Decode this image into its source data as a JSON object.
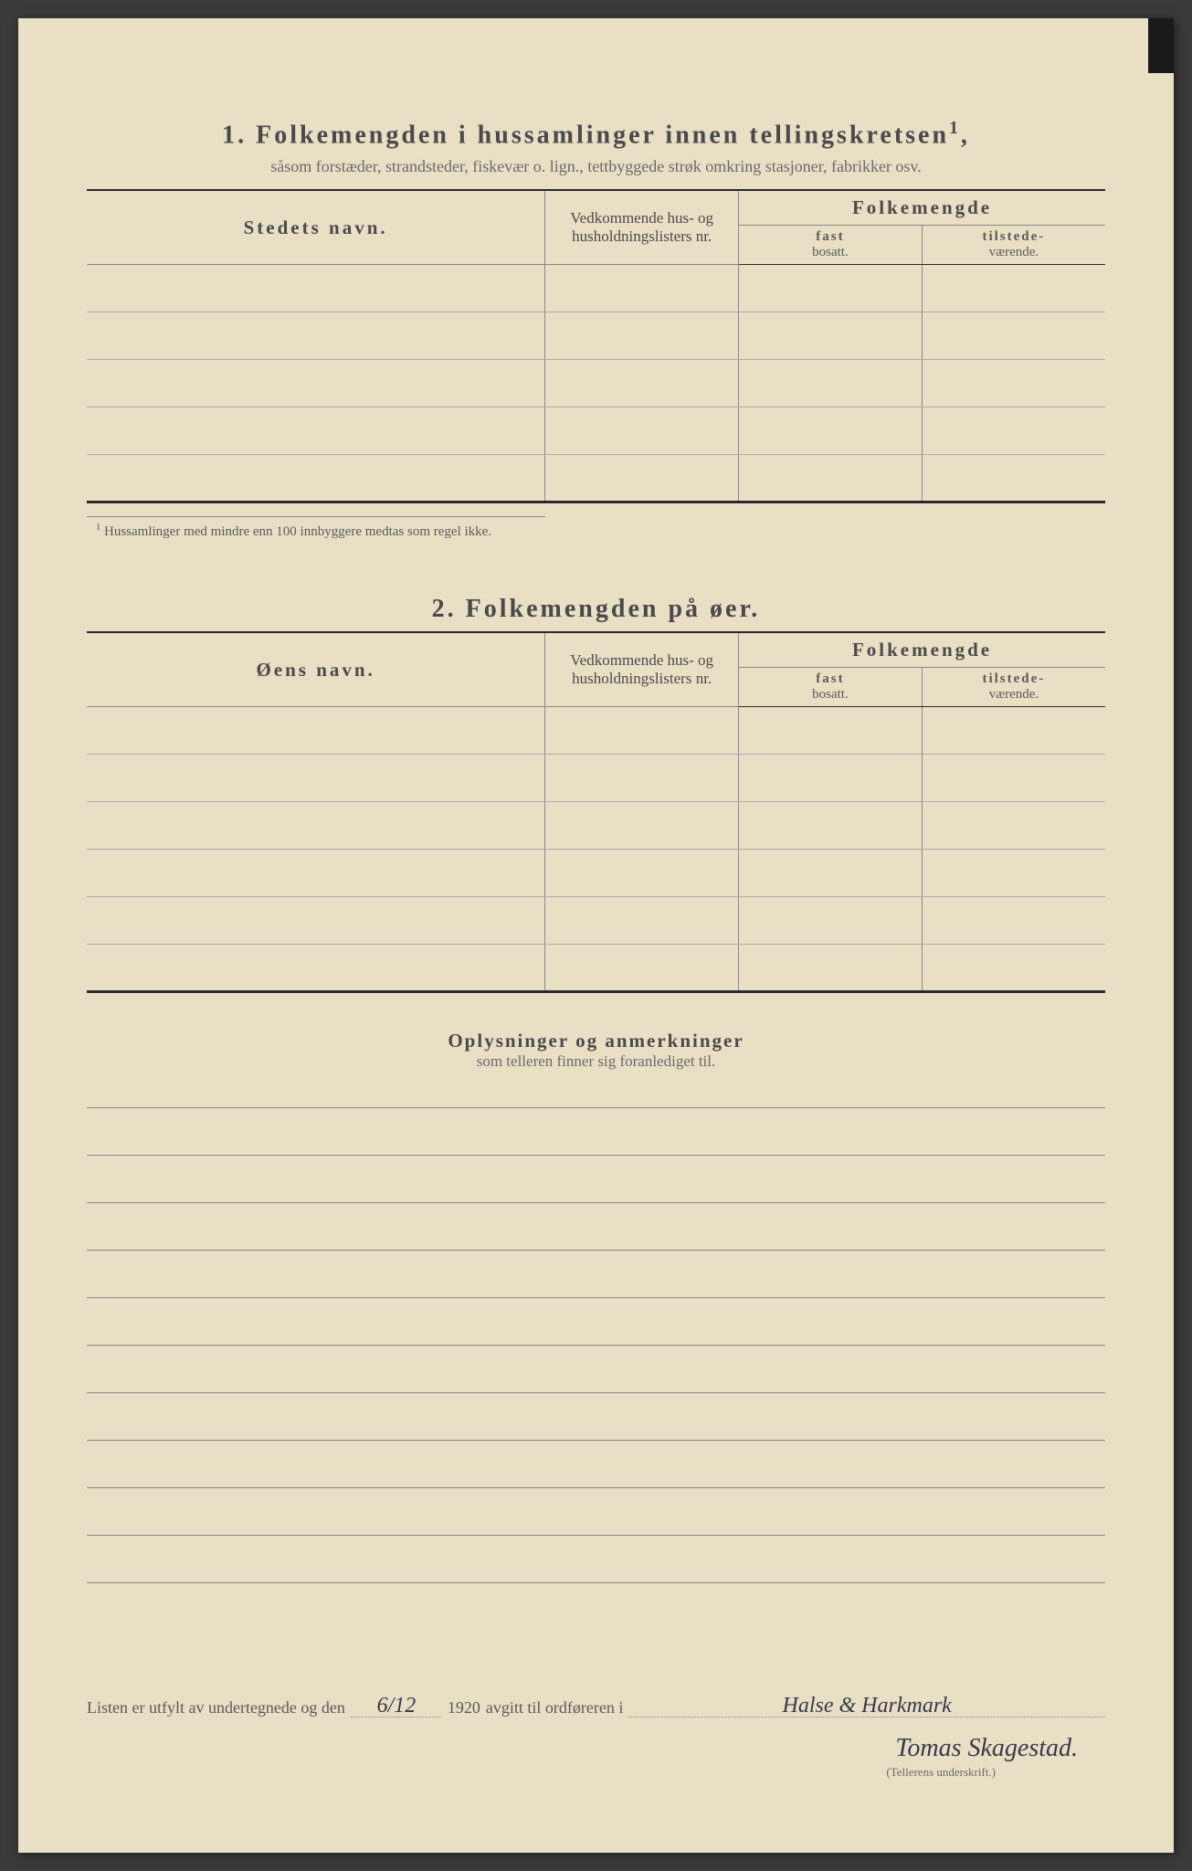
{
  "page": {
    "background_color": "#e8dfc5",
    "text_color": "#4a4a4a",
    "rule_color": "#888888",
    "heavy_rule_color": "#2a2a2a"
  },
  "section1": {
    "number": "1.",
    "title": "Folkemengden i hussamlinger innen tellingskretsen",
    "title_sup": "1",
    "subtitle": "såsom forstæder, strandsteder, fiskevær o. lign., tettbyggede strøk omkring stasjoner, fabrikker osv.",
    "columns": {
      "name": "Stedets navn.",
      "list": "Vedkommende hus- og husholdningslisters nr.",
      "pop_group": "Folkemengde",
      "fast_top": "fast",
      "fast_bottom": "bosatt.",
      "tilstede_top": "tilstede-",
      "tilstede_bottom": "værende."
    },
    "row_count": 5,
    "footnote_marker": "1",
    "footnote": "Hussamlinger med mindre enn 100 innbyggere medtas som regel ikke."
  },
  "section2": {
    "number": "2.",
    "title": "Folkemengden på øer.",
    "columns": {
      "name": "Øens navn.",
      "list": "Vedkommende hus- og husholdningslisters nr.",
      "pop_group": "Folkemengde",
      "fast_top": "fast",
      "fast_bottom": "bosatt.",
      "tilstede_top": "tilstede-",
      "tilstede_bottom": "værende."
    },
    "row_count": 6
  },
  "remarks": {
    "title": "Oplysninger og anmerkninger",
    "subtitle": "som telleren finner sig foranlediget til.",
    "line_count": 10
  },
  "signature": {
    "prefix": "Listen er utfylt av undertegnede og den",
    "date": "6/12",
    "year": "1920",
    "mid": "avgitt til ordføreren i",
    "place": "Halse & Harkmark",
    "name": "Tomas Skagestad.",
    "caption": "(Tellerens underskrift.)"
  }
}
